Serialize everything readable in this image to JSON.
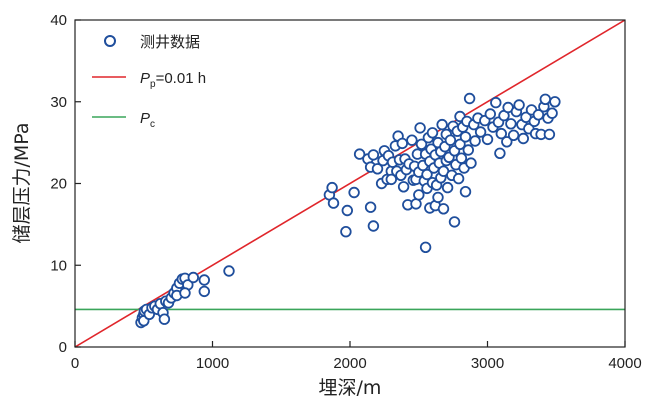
{
  "chart_data": {
    "type": "scatter",
    "title": "",
    "xlabel": "埋深/m",
    "ylabel": "储层压力/MPa",
    "xlim": [
      0,
      4000
    ],
    "ylim": [
      0,
      40
    ],
    "xticks": [
      "0",
      "1000",
      "2000",
      "3000",
      "4000"
    ],
    "yticks": [
      "0",
      "10",
      "20",
      "30",
      "40"
    ],
    "grid": false,
    "legend_position": "top-left",
    "colors": {
      "points": "#1f4e9c",
      "pp_line": "#e0262b",
      "pc_line": "#3aa55a",
      "axis": "#222222"
    },
    "legend": [
      {
        "marker": "circle",
        "label": "测井数据"
      },
      {
        "marker": "line",
        "symbol": "P",
        "subscript": "p",
        "rest": "=0.01 h"
      },
      {
        "marker": "line",
        "symbol": "P",
        "subscript": "c",
        "rest": ""
      }
    ],
    "series": [
      {
        "name": "测井数据",
        "kind": "points",
        "points": [
          [
            480,
            3.0
          ],
          [
            490,
            3.6
          ],
          [
            500,
            4.0
          ],
          [
            505,
            4.4
          ],
          [
            500,
            3.2
          ],
          [
            520,
            4.6
          ],
          [
            540,
            4.0
          ],
          [
            560,
            4.8
          ],
          [
            580,
            5.0
          ],
          [
            600,
            4.6
          ],
          [
            620,
            5.3
          ],
          [
            640,
            4.2
          ],
          [
            660,
            5.6
          ],
          [
            650,
            3.4
          ],
          [
            680,
            5.4
          ],
          [
            700,
            6.0
          ],
          [
            720,
            6.6
          ],
          [
            740,
            7.2
          ],
          [
            740,
            6.3
          ],
          [
            760,
            7.8
          ],
          [
            780,
            8.3
          ],
          [
            800,
            8.4
          ],
          [
            820,
            7.6
          ],
          [
            800,
            6.6
          ],
          [
            860,
            8.5
          ],
          [
            940,
            8.2
          ],
          [
            940,
            6.8
          ],
          [
            1120,
            9.3
          ],
          [
            1850,
            18.6
          ],
          [
            1870,
            19.5
          ],
          [
            1880,
            17.6
          ],
          [
            1980,
            16.7
          ],
          [
            1970,
            14.1
          ],
          [
            2030,
            18.9
          ],
          [
            2070,
            23.6
          ],
          [
            2130,
            23.0
          ],
          [
            2150,
            17.1
          ],
          [
            2150,
            22.0
          ],
          [
            2170,
            14.8
          ],
          [
            2170,
            23.5
          ],
          [
            2200,
            21.8
          ],
          [
            2230,
            20.0
          ],
          [
            2240,
            22.8
          ],
          [
            2250,
            24.0
          ],
          [
            2270,
            20.5
          ],
          [
            2280,
            23.4
          ],
          [
            2300,
            21.5
          ],
          [
            2300,
            20.5
          ],
          [
            2310,
            22.6
          ],
          [
            2330,
            24.6
          ],
          [
            2340,
            21.5
          ],
          [
            2350,
            25.8
          ],
          [
            2360,
            22.9
          ],
          [
            2370,
            21.0
          ],
          [
            2380,
            24.9
          ],
          [
            2390,
            19.6
          ],
          [
            2400,
            23.0
          ],
          [
            2410,
            21.7
          ],
          [
            2420,
            17.4
          ],
          [
            2430,
            22.4
          ],
          [
            2450,
            25.3
          ],
          [
            2460,
            20.4
          ],
          [
            2470,
            22.1
          ],
          [
            2480,
            20.5
          ],
          [
            2480,
            17.5
          ],
          [
            2490,
            23.6
          ],
          [
            2500,
            21.4
          ],
          [
            2500,
            18.6
          ],
          [
            2510,
            26.8
          ],
          [
            2520,
            24.8
          ],
          [
            2530,
            22.2
          ],
          [
            2540,
            20.3
          ],
          [
            2550,
            12.2
          ],
          [
            2550,
            23.6
          ],
          [
            2560,
            21.1
          ],
          [
            2560,
            19.4
          ],
          [
            2570,
            25.6
          ],
          [
            2580,
            17.0
          ],
          [
            2580,
            22.7
          ],
          [
            2590,
            24.2
          ],
          [
            2600,
            20.1
          ],
          [
            2600,
            26.2
          ],
          [
            2610,
            21.9
          ],
          [
            2620,
            23.5
          ],
          [
            2620,
            17.3
          ],
          [
            2630,
            19.8
          ],
          [
            2640,
            18.3
          ],
          [
            2640,
            25.0
          ],
          [
            2650,
            22.5
          ],
          [
            2660,
            20.7
          ],
          [
            2660,
            23.9
          ],
          [
            2670,
            27.2
          ],
          [
            2680,
            16.9
          ],
          [
            2680,
            21.5
          ],
          [
            2690,
            24.5
          ],
          [
            2700,
            22.8
          ],
          [
            2700,
            26.0
          ],
          [
            2710,
            19.5
          ],
          [
            2720,
            23.2
          ],
          [
            2730,
            25.3
          ],
          [
            2740,
            21.0
          ],
          [
            2750,
            27.0
          ],
          [
            2760,
            15.3
          ],
          [
            2760,
            24.0
          ],
          [
            2770,
            22.3
          ],
          [
            2780,
            26.4
          ],
          [
            2790,
            20.6
          ],
          [
            2800,
            24.8
          ],
          [
            2800,
            28.2
          ],
          [
            2810,
            23.1
          ],
          [
            2820,
            26.9
          ],
          [
            2830,
            21.9
          ],
          [
            2840,
            19.0
          ],
          [
            2840,
            25.7
          ],
          [
            2850,
            27.6
          ],
          [
            2860,
            24.1
          ],
          [
            2870,
            30.4
          ],
          [
            2880,
            22.5
          ],
          [
            2900,
            27.2
          ],
          [
            2910,
            25.2
          ],
          [
            2930,
            28.0
          ],
          [
            2950,
            26.3
          ],
          [
            2980,
            27.7
          ],
          [
            3000,
            25.4
          ],
          [
            3020,
            28.5
          ],
          [
            3040,
            26.9
          ],
          [
            3060,
            29.9
          ],
          [
            3080,
            27.5
          ],
          [
            3090,
            23.7
          ],
          [
            3100,
            26.1
          ],
          [
            3120,
            28.3
          ],
          [
            3140,
            25.1
          ],
          [
            3150,
            29.3
          ],
          [
            3170,
            27.3
          ],
          [
            3190,
            25.9
          ],
          [
            3210,
            28.8
          ],
          [
            3230,
            29.6
          ],
          [
            3250,
            27.2
          ],
          [
            3260,
            25.5
          ],
          [
            3280,
            28.1
          ],
          [
            3300,
            26.7
          ],
          [
            3320,
            29.0
          ],
          [
            3340,
            27.6
          ],
          [
            3350,
            26.1
          ],
          [
            3370,
            28.4
          ],
          [
            3390,
            26.0
          ],
          [
            3410,
            29.4
          ],
          [
            3420,
            30.3
          ],
          [
            3440,
            28.0
          ],
          [
            3450,
            26.0
          ],
          [
            3470,
            28.6
          ],
          [
            3490,
            30.0
          ]
        ]
      },
      {
        "name": "Pp=0.01 h",
        "kind": "line",
        "x": [
          0,
          4000
        ],
        "y": [
          0,
          40
        ]
      },
      {
        "name": "Pc",
        "kind": "line",
        "x": [
          0,
          4000
        ],
        "y": [
          4.6,
          4.6
        ]
      }
    ]
  }
}
